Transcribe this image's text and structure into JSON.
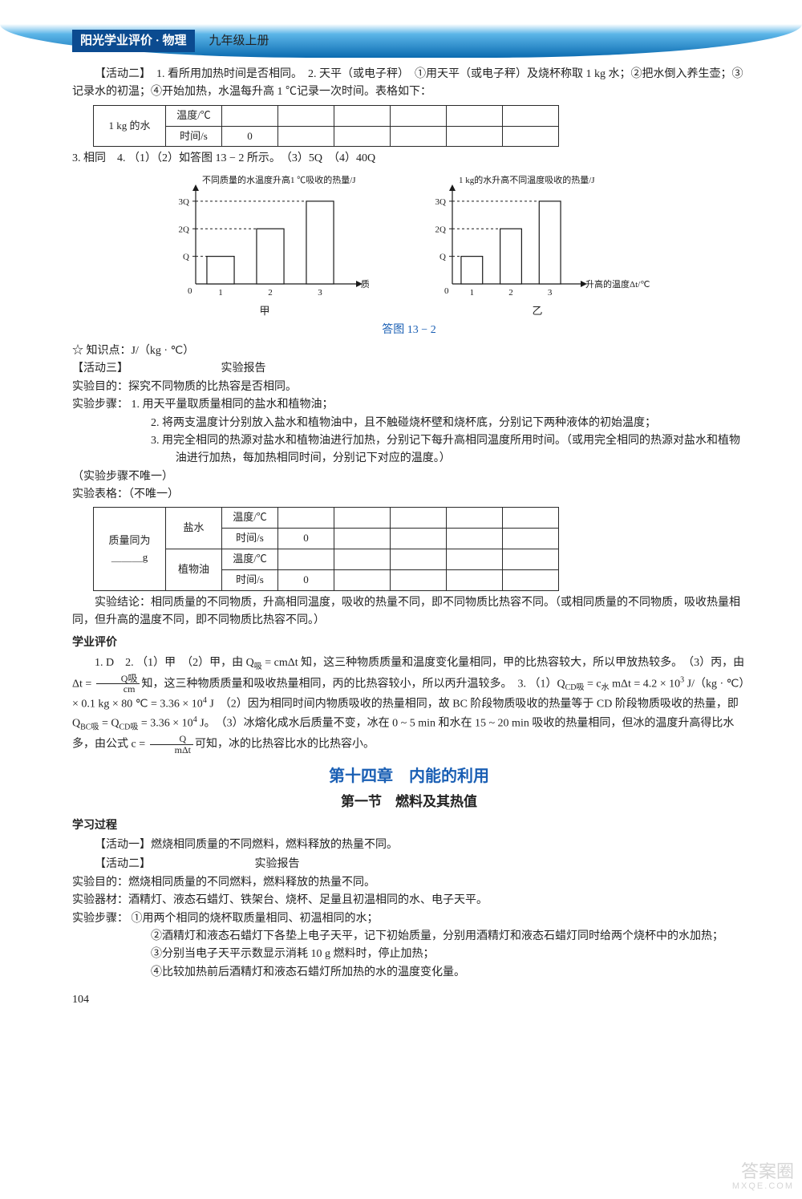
{
  "header": {
    "book_title": "阳光学业评价 · 物理",
    "grade": "九年级上册"
  },
  "activity2": {
    "lead": "【活动二】　1. 看所用加热时间是否相同。　2. 天平（或电子秤）　①用天平（或电子秤）及烧杯称取 1 kg 水；②把水倒入养生壶；③记录水的初温；④开始加热，水温每升高 1 ℃记录一次时间。表格如下：",
    "table1": {
      "left_label": "1 kg 的水",
      "row1": "温度/℃",
      "row2": "时间/s",
      "zero": "0"
    },
    "line3": "3. 相同　4. （1）（2）如答图 13 − 2 所示。　（3）5Q　（4）40Q"
  },
  "chart1": {
    "type": "bar",
    "title": "不同质量的水温度升高1 ℃吸收的热量/J",
    "xlabel": "质量/kg",
    "categories": [
      "1",
      "2",
      "3"
    ],
    "values": [
      1,
      2,
      3
    ],
    "ytick_labels": [
      "Q",
      "2Q",
      "3Q"
    ],
    "ylim": [
      0,
      3.2
    ],
    "bar_color": "#ffffff",
    "border_color": "#1a1a1a",
    "axis_color": "#1a1a1a",
    "sub_label": "甲",
    "font_size": 11
  },
  "chart2": {
    "type": "bar",
    "title": "1 kg的水升高不同温度吸收的热量/J",
    "xlabel": "升高的温度Δt/℃",
    "categories": [
      "1",
      "2",
      "3"
    ],
    "values": [
      1,
      2,
      3
    ],
    "ytick_labels": [
      "Q",
      "2Q",
      "3Q"
    ],
    "ylim": [
      0,
      3.2
    ],
    "bar_color": "#ffffff",
    "border_color": "#1a1a1a",
    "axis_color": "#1a1a1a",
    "sub_label": "乙",
    "font_size": 11
  },
  "fig_caption": "答图 13 − 2",
  "knowledge_point": "☆ 知识点：J/（kg · ℃）",
  "activity3": {
    "heading": "【活动三】",
    "report_title": "实验报告",
    "purpose": "实验目的：探究不同物质的比热容是否相同。",
    "steps_label": "实验步骤：",
    "step1": "1. 用天平量取质量相同的盐水和植物油；",
    "step2": "2. 将两支温度计分别放入盐水和植物油中，且不触碰烧杯壁和烧杯底，分别记下两种液体的初始温度；",
    "step3": "3. 用完全相同的热源对盐水和植物油进行加热，分别记下每升高相同温度所用时间。（或用完全相同的热源对盐水和植物油进行加热，每加热相同时间，分别记下对应的温度。）",
    "steps_note": "（实验步骤不唯一）",
    "table_note": "实验表格：（不唯一）",
    "table2": {
      "mass_label": "质量同为",
      "mass_unit": "＿＿＿g",
      "salt": "盐水",
      "oil": "植物油",
      "temp": "温度/℃",
      "time": "时间/s",
      "zero": "0"
    },
    "conclusion": "实验结论：相同质量的不同物质，升高相同温度，吸收的热量不同，即不同物质比热容不同。（或相同质量的不同物质，吸收热量相同，但升高的温度不同，即不同物质比热容不同。）"
  },
  "evaluation": {
    "heading": "学业评价",
    "p1_a": "1. D　2. （1）甲　（2）甲，由 Q",
    "p1_sub1": "吸",
    "p1_b": " = cmΔt 知，这三种物质质量和温度变化量相同，甲的比热容较大，所以甲放热较多。　（3）丙，由 Δt = ",
    "p1_frac_num": "Q吸",
    "p1_frac_den": "cm",
    "p1_c": "知，这三种物质质量和吸收热量相同，丙的比热容较小，所以丙升温较多。　3. （1）Q",
    "p1_sub2": "CD吸",
    "p1_d": " = c",
    "p1_sub3": "水",
    "p1_e": " mΔt = 4.2 × 10",
    "p1_sup1": "3",
    "p1_f": " J/（kg · ℃）× 0.1 kg × 80 ℃ = 3.36 × 10",
    "p1_sup2": "4",
    "p1_g": " J　（2）因为相同时间内物质吸收的热量相同，故 BC 阶段物质吸收的热量等于 CD 阶段物质吸收的热量，即 Q",
    "p1_sub4": "BC吸",
    "p1_h": " = Q",
    "p1_sub5": "CD吸",
    "p1_i": " = 3.36 × 10",
    "p1_sup3": "4",
    "p1_j": " J。　（3）冰熔化成水后质量不变，冰在 0 ~ 5 min 和水在 15 ~ 20 min 吸收的热量相同，但冰的温度升高得比水多，由公式 c = ",
    "p1_frac2_num": "Q",
    "p1_frac2_den": "mΔt",
    "p1_k": "可知，冰的比热容比水的比热容小。"
  },
  "ch14": {
    "title": "第十四章　内能的利用",
    "sub": "第一节　燃料及其热值"
  },
  "learning": {
    "heading": "学习过程",
    "a1": "【活动一】燃烧相同质量的不同燃料，燃料释放的热量不同。",
    "a2": "【活动二】",
    "report_title": "实验报告",
    "purpose": "实验目的：燃烧相同质量的不同燃料，燃料释放的热量不同。",
    "equip": "实验器材：酒精灯、液态石蜡灯、铁架台、烧杯、足量且初温相同的水、电子天平。",
    "steps_label": "实验步骤：",
    "s1": "①用两个相同的烧杯取质量相同、初温相同的水；",
    "s2": "②酒精灯和液态石蜡灯下各垫上电子天平，记下初始质量，分别用酒精灯和液态石蜡灯同时给两个烧杯中的水加热；",
    "s3": "③分别当电子天平示数显示消耗 10 g 燃料时，停止加热；",
    "s4": "④比较加热前后酒精灯和液态石蜡灯所加热的水的温度变化量。"
  },
  "page_number": "104",
  "watermark": {
    "big": "答案圈",
    "small": "MXQE.COM"
  }
}
